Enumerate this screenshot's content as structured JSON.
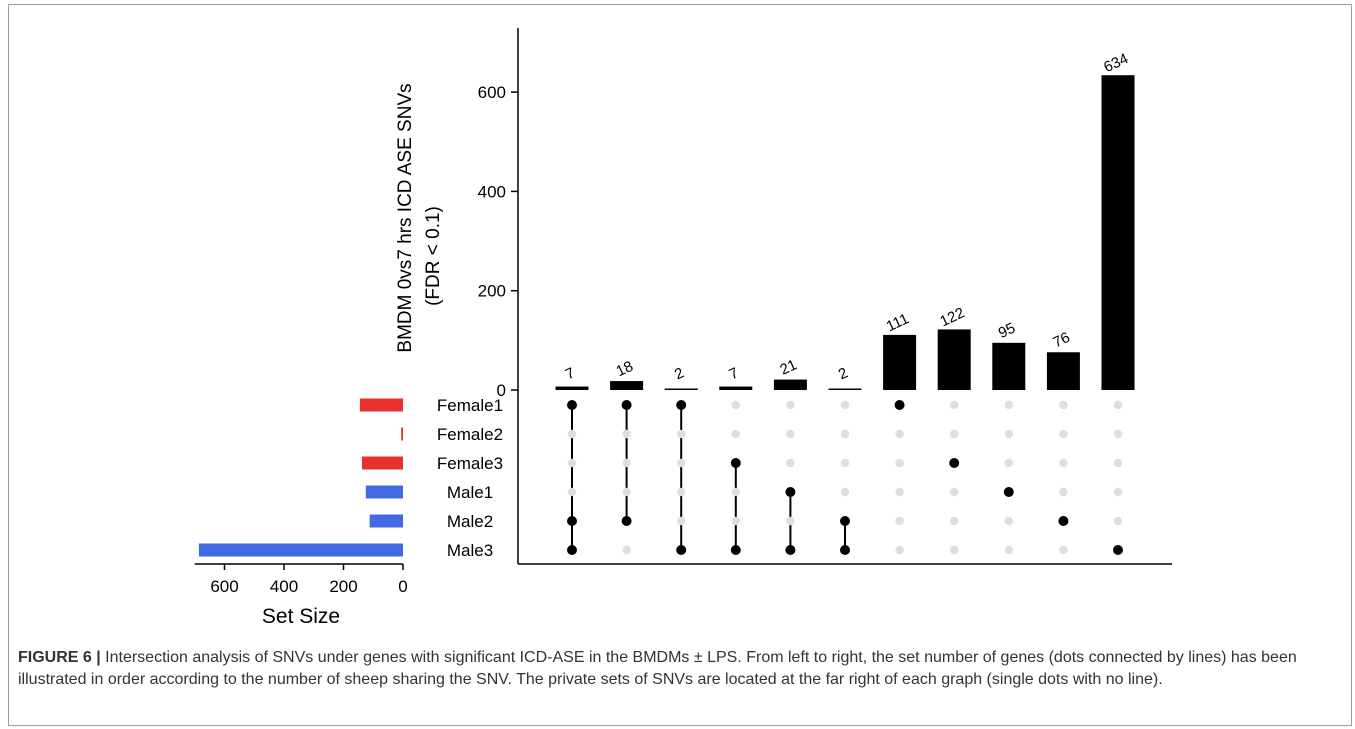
{
  "colors": {
    "female": "#e8312d",
    "male": "#4169e1",
    "bar": "#000000",
    "dot_active": "#000000",
    "dot_inactive": "#dedede",
    "axis": "#000000"
  },
  "chart_data": {
    "type": "upset",
    "ylabel_line1": "BMDM 0vs7 hrs ICD ASE SNVs",
    "ylabel_line2": "(FDR < 0.1)",
    "ylim": [
      0,
      730
    ],
    "y_ticks": [
      "0",
      "200",
      "400",
      "600"
    ],
    "y_tick_values": [
      0,
      200,
      400,
      600
    ],
    "sets": [
      {
        "name": "Female1",
        "size": 145,
        "group": "female"
      },
      {
        "name": "Female2",
        "size": 6,
        "group": "female"
      },
      {
        "name": "Female3",
        "size": 138,
        "group": "female"
      },
      {
        "name": "Male1",
        "size": 125,
        "group": "male"
      },
      {
        "name": "Male2",
        "size": 112,
        "group": "male"
      },
      {
        "name": "Male3",
        "size": 686,
        "group": "male"
      }
    ],
    "intersections": [
      {
        "label": "7",
        "value": 7,
        "sets": [
          "Female1",
          "Male2",
          "Male3"
        ]
      },
      {
        "label": "18",
        "value": 18,
        "sets": [
          "Female1",
          "Male2"
        ]
      },
      {
        "label": "2",
        "value": 2,
        "sets": [
          "Female1",
          "Male3"
        ]
      },
      {
        "label": "7",
        "value": 7,
        "sets": [
          "Female3",
          "Male3"
        ]
      },
      {
        "label": "21",
        "value": 21,
        "sets": [
          "Male1",
          "Male3"
        ]
      },
      {
        "label": "2",
        "value": 2,
        "sets": [
          "Male2",
          "Male3"
        ]
      },
      {
        "label": "111",
        "value": 111,
        "sets": [
          "Female1"
        ]
      },
      {
        "label": "122",
        "value": 122,
        "sets": [
          "Female3"
        ]
      },
      {
        "label": "95",
        "value": 95,
        "sets": [
          "Male1"
        ]
      },
      {
        "label": "76",
        "value": 76,
        "sets": [
          "Male2"
        ]
      },
      {
        "label": "634",
        "value": 634,
        "sets": [
          "Male3"
        ]
      }
    ],
    "set_size_xlabel": "Set Size",
    "set_size_ticks": [
      "600",
      "400",
      "200",
      "0"
    ],
    "set_size_tick_values": [
      600,
      400,
      200,
      0
    ]
  },
  "caption": {
    "figure_label": "FIGURE 6 |",
    "text": " Intersection analysis of SNVs under genes with significant ICD-ASE in the BMDMs ± LPS. From left to right, the set number of genes (dots connected by lines) has been illustrated in order according to the number of sheep sharing the SNV. The private sets of SNVs are located at the far right of each graph (single dots with no line)."
  }
}
